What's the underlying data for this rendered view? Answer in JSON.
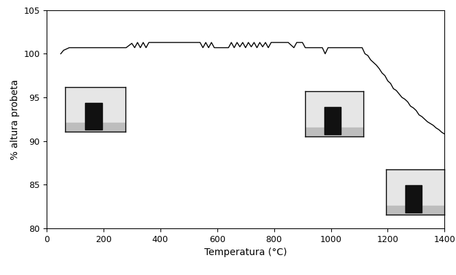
{
  "chart_data": {
    "type": "line",
    "x_label": "Temperatura (°C)",
    "y_label": "% altura probeta",
    "x": [
      50,
      60,
      80,
      280,
      300,
      310,
      320,
      330,
      340,
      350,
      360,
      540,
      550,
      560,
      570,
      580,
      590,
      600,
      640,
      650,
      660,
      670,
      680,
      690,
      700,
      710,
      720,
      730,
      740,
      750,
      760,
      770,
      780,
      790,
      800,
      850,
      870,
      880,
      900,
      910,
      970,
      980,
      990,
      1110,
      1120,
      1130,
      1140,
      1150,
      1160,
      1170,
      1180,
      1190,
      1200,
      1210,
      1220,
      1230,
      1240,
      1250,
      1260,
      1270,
      1280,
      1290,
      1300,
      1310,
      1320,
      1330,
      1340,
      1350,
      1360,
      1370,
      1380,
      1390,
      1400
    ],
    "values": [
      100.0,
      100.4,
      100.7,
      100.7,
      101.2,
      100.7,
      101.3,
      100.7,
      101.3,
      100.7,
      101.3,
      101.3,
      100.7,
      101.3,
      100.7,
      101.3,
      100.7,
      100.7,
      100.7,
      101.3,
      100.7,
      101.3,
      100.8,
      101.3,
      100.7,
      101.3,
      100.8,
      101.3,
      100.7,
      101.3,
      100.8,
      101.3,
      100.7,
      101.3,
      101.3,
      101.3,
      100.7,
      101.3,
      101.3,
      100.7,
      100.7,
      100.0,
      100.7,
      100.7,
      100.0,
      99.8,
      99.3,
      99.0,
      98.7,
      98.3,
      97.8,
      97.5,
      96.9,
      96.6,
      96.0,
      95.8,
      95.4,
      95.0,
      94.8,
      94.5,
      94.0,
      93.8,
      93.5,
      93.0,
      92.8,
      92.5,
      92.2,
      92.0,
      91.8,
      91.5,
      91.3,
      91.0,
      90.8
    ],
    "color": "#000000",
    "xlim": [
      0,
      1400
    ],
    "xticks": [
      0,
      200,
      400,
      600,
      800,
      1000,
      1200,
      1400
    ],
    "ylim": [
      80,
      105
    ],
    "yticks": [
      80,
      85,
      90,
      95,
      100,
      105
    ],
    "grid": false
  }
}
